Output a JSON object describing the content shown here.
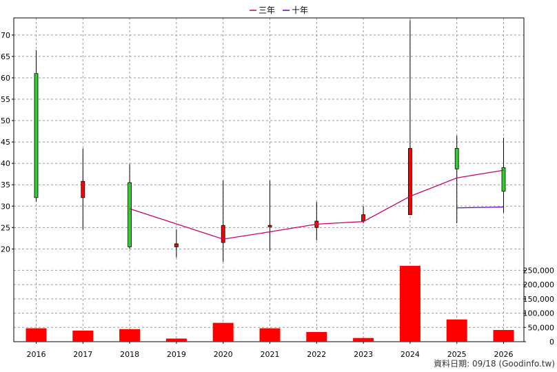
{
  "chart_data": {
    "type": "candlestick",
    "legend": [
      {
        "name": "三年",
        "color": "#cc0066"
      },
      {
        "name": "十年",
        "color": "#6600cc"
      }
    ],
    "legend_position": "top-center",
    "categories": [
      "2016",
      "2017",
      "2018",
      "2019",
      "2020",
      "2021",
      "2022",
      "2023",
      "2024",
      "2025",
      "2026"
    ],
    "price_axis": {
      "ylim": [
        17,
        74
      ],
      "ticks": [
        20,
        25,
        30,
        35,
        40,
        45,
        50,
        55,
        60,
        65,
        70
      ],
      "side": "left"
    },
    "volume_axis": {
      "ylim": [
        0,
        280000
      ],
      "ticks": [
        "0",
        "50,000",
        "100,000",
        "150,000",
        "200,000",
        "250,000"
      ],
      "tick_values": [
        0,
        50000,
        100000,
        150000,
        200000,
        250000
      ],
      "side": "right"
    },
    "grid": true,
    "candles": [
      {
        "year": "2016",
        "open": 61.0,
        "high": 66.5,
        "low": 31.0,
        "close": 32.0,
        "color": "green"
      },
      {
        "year": "2017",
        "open": 32.0,
        "high": 43.5,
        "low": 24.5,
        "close": 35.8,
        "color": "red"
      },
      {
        "year": "2018",
        "open": 35.5,
        "high": 39.8,
        "low": 20.0,
        "close": 20.5,
        "color": "green"
      },
      {
        "year": "2019",
        "open": 20.5,
        "high": 24.5,
        "low": 18.0,
        "close": 21.2,
        "color": "red"
      },
      {
        "year": "2020",
        "open": 21.5,
        "high": 36.0,
        "low": 17.0,
        "close": 25.5,
        "color": "red"
      },
      {
        "year": "2021",
        "open": 25.5,
        "high": 36.0,
        "low": 19.5,
        "close": 25.3,
        "color": "red"
      },
      {
        "year": "2022",
        "open": 25.0,
        "high": 31.0,
        "low": 22.0,
        "close": 26.5,
        "color": "red"
      },
      {
        "year": "2023",
        "open": 26.5,
        "high": 30.0,
        "low": 26.0,
        "close": 28.0,
        "color": "red"
      },
      {
        "year": "2024",
        "open": 28.0,
        "high": 73.5,
        "low": 28.0,
        "close": 43.5,
        "color": "red"
      },
      {
        "year": "2025",
        "open": 43.5,
        "high": 46.5,
        "low": 26.0,
        "close": 38.7,
        "color": "green"
      },
      {
        "year": "2026",
        "open": 39.0,
        "high": 46.0,
        "low": 28.5,
        "close": 33.5,
        "color": "green"
      }
    ],
    "series": [
      {
        "name": "三年",
        "color": "#cc0066",
        "points": [
          [
            "2018",
            29.4
          ],
          [
            "2020",
            22.3
          ],
          [
            "2021",
            24.0
          ],
          [
            "2022",
            25.8
          ],
          [
            "2023",
            26.4
          ],
          [
            "2024",
            32.3
          ],
          [
            "2025",
            36.6
          ],
          [
            "2026",
            38.4
          ]
        ]
      },
      {
        "name": "十年",
        "color": "#6600cc",
        "points": [
          [
            "2025",
            29.6
          ],
          [
            "2026",
            29.8
          ]
        ]
      }
    ],
    "volume": [
      {
        "year": "2016",
        "value": 47000
      },
      {
        "year": "2017",
        "value": 39000
      },
      {
        "year": "2018",
        "value": 44000
      },
      {
        "year": "2019",
        "value": 11000
      },
      {
        "year": "2020",
        "value": 66000
      },
      {
        "year": "2021",
        "value": 47000
      },
      {
        "year": "2022",
        "value": 34000
      },
      {
        "year": "2023",
        "value": 13000
      },
      {
        "year": "2024",
        "value": 266000
      },
      {
        "year": "2025",
        "value": 78000
      },
      {
        "year": "2026",
        "value": 41000
      }
    ],
    "footer": "資料日期: 09/18  (Goodinfo.tw)"
  }
}
